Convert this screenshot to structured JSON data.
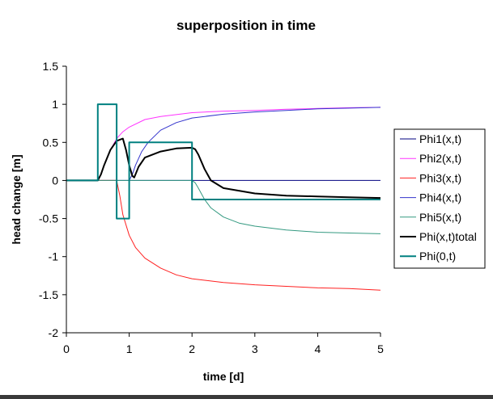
{
  "chart_data": {
    "type": "line",
    "title": "superposition in time",
    "xlabel": "time [d]",
    "ylabel": "head change [m]",
    "xlim": [
      0,
      5
    ],
    "ylim": [
      -2,
      1.5
    ],
    "xticks": [
      0,
      1,
      2,
      3,
      4,
      5
    ],
    "yticks": [
      -2,
      -1.5,
      -1,
      -0.5,
      0,
      0.5,
      1,
      1.5
    ],
    "xtick_labels": [
      "0",
      "1",
      "2",
      "3",
      "4",
      "5"
    ],
    "ytick_labels": [
      "-2",
      "-1.5",
      "-1",
      "-0.5",
      "0",
      "0.5",
      "1",
      "1.5"
    ],
    "grid": false,
    "legend_position": "right",
    "series": [
      {
        "name": "Phi1(x,t)",
        "color": "#00007f",
        "width": 1,
        "x": [
          0,
          5
        ],
        "y": [
          0,
          0
        ]
      },
      {
        "name": "Phi2(x,t)",
        "color": "#ff33ff",
        "width": 1,
        "x": [
          0,
          0.5,
          0.55,
          0.6,
          0.7,
          0.8,
          0.9,
          1.0,
          1.25,
          1.5,
          2.0,
          2.5,
          3.0,
          3.5,
          4.0,
          4.5,
          5.0
        ],
        "y": [
          0,
          0,
          0.08,
          0.2,
          0.4,
          0.55,
          0.64,
          0.7,
          0.8,
          0.84,
          0.89,
          0.91,
          0.92,
          0.935,
          0.945,
          0.955,
          0.96
        ]
      },
      {
        "name": "Phi3(x,t)",
        "color": "#ff2020",
        "width": 1,
        "x": [
          0,
          0.8,
          0.85,
          0.9,
          1.0,
          1.1,
          1.25,
          1.5,
          1.75,
          2.0,
          2.5,
          3.0,
          3.5,
          4.0,
          4.5,
          5.0
        ],
        "y": [
          0,
          0,
          -0.2,
          -0.45,
          -0.72,
          -0.88,
          -1.02,
          -1.15,
          -1.24,
          -1.29,
          -1.34,
          -1.37,
          -1.39,
          -1.41,
          -1.42,
          -1.44
        ]
      },
      {
        "name": "Phi4(x,t)",
        "color": "#3333cc",
        "width": 1,
        "x": [
          1.0,
          1.05,
          1.1,
          1.2,
          1.3,
          1.5,
          1.75,
          2.0,
          2.5,
          3.0,
          3.5,
          4.0,
          4.5,
          5.0
        ],
        "y": [
          0,
          0.08,
          0.2,
          0.38,
          0.5,
          0.66,
          0.76,
          0.82,
          0.87,
          0.9,
          0.92,
          0.94,
          0.95,
          0.96
        ]
      },
      {
        "name": "Phi5(x,t)",
        "color": "#339980",
        "width": 1,
        "x": [
          0,
          2.0,
          2.05,
          2.1,
          2.2,
          2.3,
          2.5,
          2.75,
          3.0,
          3.5,
          4.0,
          4.5,
          5.0
        ],
        "y": [
          0,
          0,
          -0.03,
          -0.1,
          -0.25,
          -0.36,
          -0.48,
          -0.56,
          -0.6,
          -0.65,
          -0.68,
          -0.69,
          -0.7
        ]
      },
      {
        "name": "Phi(x,t)total",
        "color": "#000000",
        "width": 2,
        "x": [
          0,
          0.5,
          0.55,
          0.6,
          0.7,
          0.8,
          0.9,
          0.95,
          1.0,
          1.05,
          1.08,
          1.1,
          1.15,
          1.25,
          1.5,
          1.75,
          2.0,
          2.05,
          2.1,
          2.2,
          2.3,
          2.5,
          3.0,
          3.5,
          4.0,
          4.5,
          5.0
        ],
        "y": [
          0,
          0,
          0.08,
          0.2,
          0.4,
          0.52,
          0.55,
          0.4,
          0.2,
          0.06,
          0.04,
          0.08,
          0.18,
          0.3,
          0.38,
          0.42,
          0.43,
          0.41,
          0.34,
          0.15,
          0.0,
          -0.1,
          -0.17,
          -0.2,
          -0.21,
          -0.22,
          -0.23
        ]
      },
      {
        "name": "Phi(0,t)",
        "color": "#008080",
        "width": 2,
        "x": [
          0,
          0.5,
          0.5,
          0.8,
          0.8,
          1.0,
          1.0,
          2.0,
          2.0,
          5.0
        ],
        "y": [
          0,
          0,
          1,
          1,
          -0.5,
          -0.5,
          0.5,
          0.5,
          -0.25,
          -0.25
        ]
      }
    ]
  }
}
